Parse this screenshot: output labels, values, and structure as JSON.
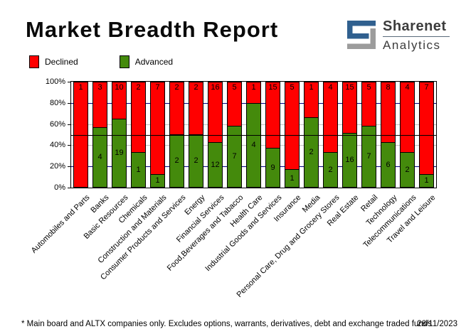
{
  "header": {
    "title": "Market Breadth Report",
    "logo": {
      "line1": "Sharenet",
      "line2": "Analytics"
    }
  },
  "legend": {
    "declined_label": "Declined",
    "advanced_label": "Advanced"
  },
  "footer": {
    "note": "* Main board and ALTX companies only. Excludes options, warrants, derivatives, debt and exchange traded funds",
    "date": "28/11/2023"
  },
  "colors": {
    "declined": "#ff0000",
    "advanced": "#448a0c",
    "grid_navy": "#000080",
    "grid_gray": "#c0c0c0",
    "midline": "#000000",
    "logo_blue": "#30608f",
    "logo_gray": "#9c9c9c"
  },
  "chart_data": {
    "type": "bar",
    "subtype": "stacked-100-percent",
    "title": "Market Breadth Report",
    "categories": [
      "Automobiles and Parts",
      "Banks",
      "Basic Resources",
      "Chemicals",
      "Construction and Materials",
      "Consumer Products and Services",
      "Energy",
      "Financial Services",
      "Food,Beverages and Tabacco",
      "Health Care",
      "Industrial Goods and Services",
      "Insurance",
      "Media",
      "Personal Care, Drug and Grocery Stores",
      "Real Estate",
      "Retail",
      "Technology",
      "Telecommunications",
      "Travel and Leisure"
    ],
    "series": [
      {
        "name": "Declined",
        "color": "#ff0000",
        "values": [
          1,
          3,
          10,
          2,
          7,
          2,
          2,
          16,
          5,
          1,
          15,
          5,
          1,
          4,
          15,
          5,
          8,
          4,
          7
        ]
      },
      {
        "name": "Advanced",
        "color": "#448a0c",
        "values": [
          0,
          4,
          19,
          1,
          1,
          2,
          2,
          12,
          7,
          4,
          9,
          1,
          2,
          2,
          16,
          7,
          6,
          2,
          1
        ]
      }
    ],
    "y_axis": {
      "tick_labels": [
        "100%",
        "80%",
        "60%",
        "40%",
        "20%",
        "0%"
      ],
      "tick_pcts": [
        100,
        80,
        60,
        40,
        20,
        0
      ],
      "ylim": [
        0,
        100
      ],
      "gridlines": [
        {
          "pct": 80,
          "color": "#000080",
          "front": false
        },
        {
          "pct": 60,
          "color": "#c0c0c0",
          "front": false
        },
        {
          "pct": 50,
          "color": "#000000",
          "front": true
        },
        {
          "pct": 40,
          "color": "#c0c0c0",
          "front": false
        },
        {
          "pct": 20,
          "color": "#000080",
          "front": false
        }
      ]
    },
    "legend_position": "top-left",
    "bar_value_labels": true
  }
}
